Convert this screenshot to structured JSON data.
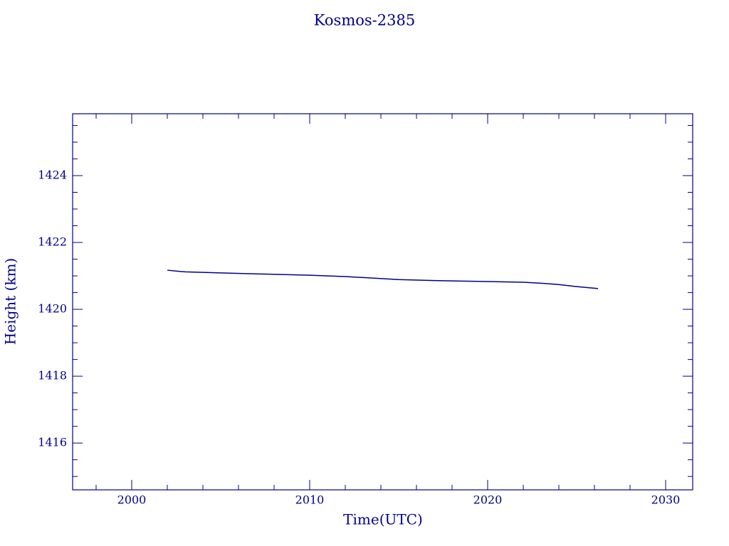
{
  "chart_data": {
    "type": "line",
    "title": "Kosmos-2385",
    "x_label": "Time(UTC)",
    "y_label": "Height (km)",
    "x": [
      2002.0,
      2003.0,
      2005.0,
      2007.0,
      2010.0,
      2012.0,
      2015.0,
      2017.0,
      2020.0,
      2022.0,
      2023.0,
      2024.0,
      2025.0,
      2026.2
    ],
    "series": [
      {
        "color": "#00008b",
        "values": [
          1421.17,
          1421.12,
          1421.09,
          1421.06,
          1421.02,
          1420.98,
          1420.89,
          1420.86,
          1420.83,
          1420.81,
          1420.78,
          1420.74,
          1420.68,
          1420.62
        ]
      }
    ],
    "xlim": [
      1996.68,
      2031.52
    ],
    "ylim": [
      1414.6,
      1425.85
    ],
    "xticks": [
      2000,
      2010,
      2020,
      2030
    ],
    "yticks": [
      1416,
      1418,
      1420,
      1422,
      1424
    ],
    "xminorticks": [
      1998,
      2002,
      2004,
      2006,
      2008,
      2012,
      2014,
      2016,
      2018,
      2022,
      2024,
      2026,
      2028
    ],
    "yminorticks": [
      1415,
      1415.5,
      1416.5,
      1417,
      1417.5,
      1418.5,
      1419,
      1419.5,
      1420.5,
      1421,
      1421.5,
      1422.5,
      1423,
      1423.5,
      1424.5,
      1425,
      1425.5
    ],
    "axis_color": "#00008b",
    "background": "#ffffff"
  }
}
